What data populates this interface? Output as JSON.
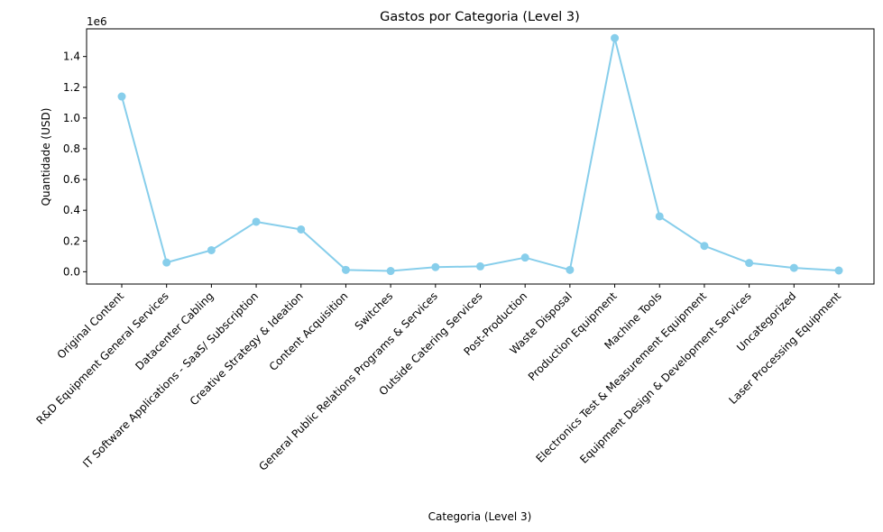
{
  "chart_data": {
    "type": "line",
    "title": "Gastos por Categoria (Level 3)",
    "xlabel": "Categoria (Level 3)",
    "ylabel": "Quantidade (USD)",
    "y_offset_label": "1e6",
    "ylim": [
      -80000,
      1580000
    ],
    "yticks": [
      0,
      200000,
      400000,
      600000,
      800000,
      1000000,
      1200000,
      1400000
    ],
    "ytick_labels": [
      "0.0",
      "0.2",
      "0.4",
      "0.6",
      "0.8",
      "1.0",
      "1.2",
      "1.4"
    ],
    "grid": false,
    "line_color": "#87CEEB",
    "marker": "circle",
    "categories": [
      "Original Content",
      "R&D Equipment General Services",
      "Datacenter Cabling",
      "IT Software Applications - SaaS/ Subscription",
      "Creative Strategy & Ideation",
      "Content Acquisition",
      "Switches",
      "General Public Relations Programs & Services",
      "Outside Catering Services",
      "Post-Production",
      "Waste Disposal",
      "Production Equipment",
      "Machine Tools",
      "Electronics Test & Measurement Equipment",
      "Equipment Design & Development Services",
      "Uncategorized",
      "Laser Processing Equipment"
    ],
    "values": [
      1140000,
      60000,
      140000,
      325000,
      275000,
      12000,
      5000,
      30000,
      35000,
      92000,
      12000,
      1520000,
      360000,
      168000,
      57000,
      25000,
      8000
    ]
  }
}
